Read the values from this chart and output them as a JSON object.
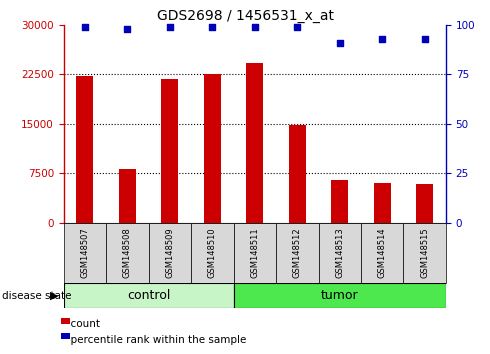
{
  "title": "GDS2698 / 1456531_x_at",
  "samples": [
    "GSM148507",
    "GSM148508",
    "GSM148509",
    "GSM148510",
    "GSM148511",
    "GSM148512",
    "GSM148513",
    "GSM148514",
    "GSM148515"
  ],
  "counts": [
    22200,
    8200,
    21800,
    22600,
    24200,
    14800,
    6500,
    6000,
    5900
  ],
  "percentile_ranks": [
    99,
    98,
    99,
    99,
    99,
    99,
    91,
    93,
    93
  ],
  "groups": [
    "control",
    "control",
    "control",
    "control",
    "tumor",
    "tumor",
    "tumor",
    "tumor",
    "tumor"
  ],
  "control_color": "#c8f5c8",
  "tumor_color": "#4de84d",
  "bar_color": "#cc0000",
  "dot_color": "#0000bb",
  "left_ylim": [
    0,
    30000
  ],
  "right_ylim": [
    0,
    100
  ],
  "left_yticks": [
    0,
    7500,
    15000,
    22500,
    30000
  ],
  "right_yticks": [
    0,
    25,
    50,
    75,
    100
  ],
  "grid_values": [
    7500,
    15000,
    22500
  ],
  "bg_color": "#ffffff"
}
